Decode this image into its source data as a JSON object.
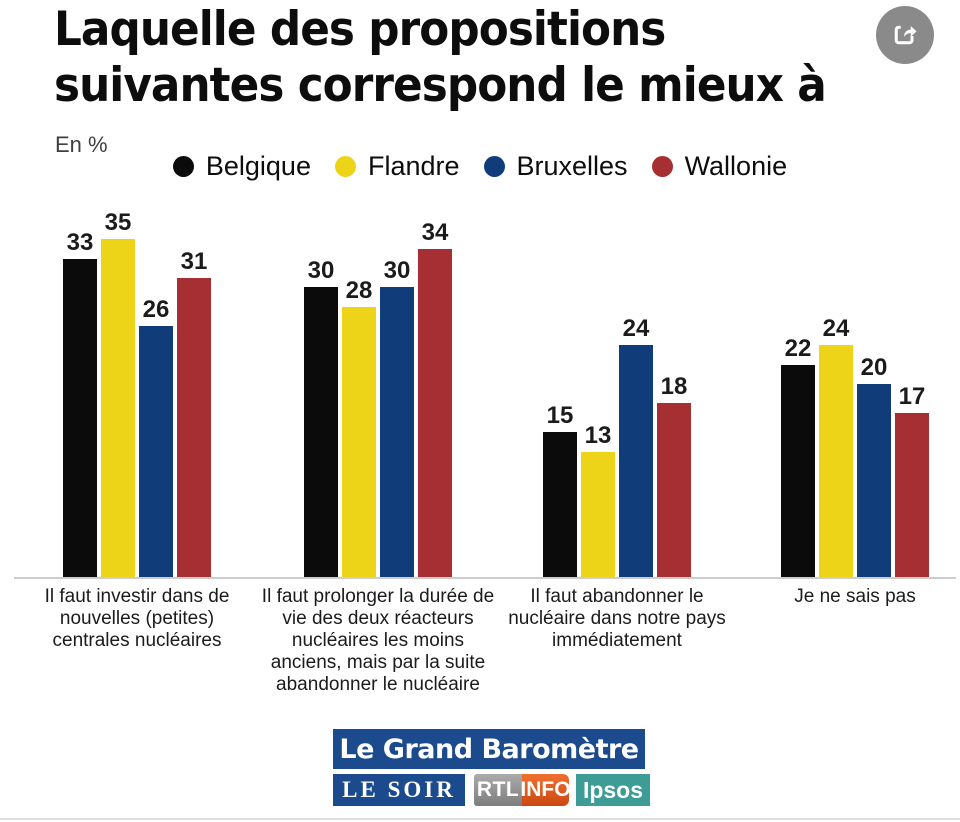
{
  "header": {
    "title_line1": "Laquelle des propositions",
    "title_line2": "suivantes correspond le mieux à",
    "unit_label": "En %"
  },
  "chart_data": {
    "type": "bar",
    "title": "Laquelle des propositions suivantes correspond le mieux à",
    "xlabel": "",
    "ylabel": "En %",
    "ylim": [
      0,
      38
    ],
    "grid": false,
    "legend_position": "top",
    "value_labels": true,
    "categories": [
      "Il faut investir dans de nouvelles (petites) centrales nucléaires",
      "Il faut prolonger la durée de vie des deux réacteurs nucléaires les moins anciens, mais par la suite abandonner le nucléaire",
      "Il faut abandonner le nucléaire dans notre pays immédiatement",
      "Je ne sais pas"
    ],
    "series": [
      {
        "name": "Belgique",
        "color": "#0b0b0b",
        "values": [
          33,
          30,
          15,
          22
        ]
      },
      {
        "name": "Flandre",
        "color": "#eed418",
        "values": [
          35,
          28,
          13,
          24
        ]
      },
      {
        "name": "Bruxelles",
        "color": "#113c7a",
        "values": [
          26,
          30,
          24,
          20
        ]
      },
      {
        "name": "Wallonie",
        "color": "#a52f33",
        "values": [
          31,
          34,
          18,
          17
        ]
      }
    ]
  },
  "icons": {
    "share": "share-icon"
  },
  "footer": {
    "banner_text": "Le Grand Baromètre",
    "banner_color": "#1b4a8d",
    "logos": [
      {
        "name": "le-soir",
        "text": "LE SOIR",
        "bg": "#1b4a8d"
      },
      {
        "name": "rtl",
        "text": "RTL",
        "bg": "#8f8f8f"
      },
      {
        "name": "rtl-info",
        "text": "INFO",
        "bg": "#e2571b"
      },
      {
        "name": "ipsos",
        "text": "Ipsos",
        "bg": "#3d9c96"
      }
    ]
  }
}
